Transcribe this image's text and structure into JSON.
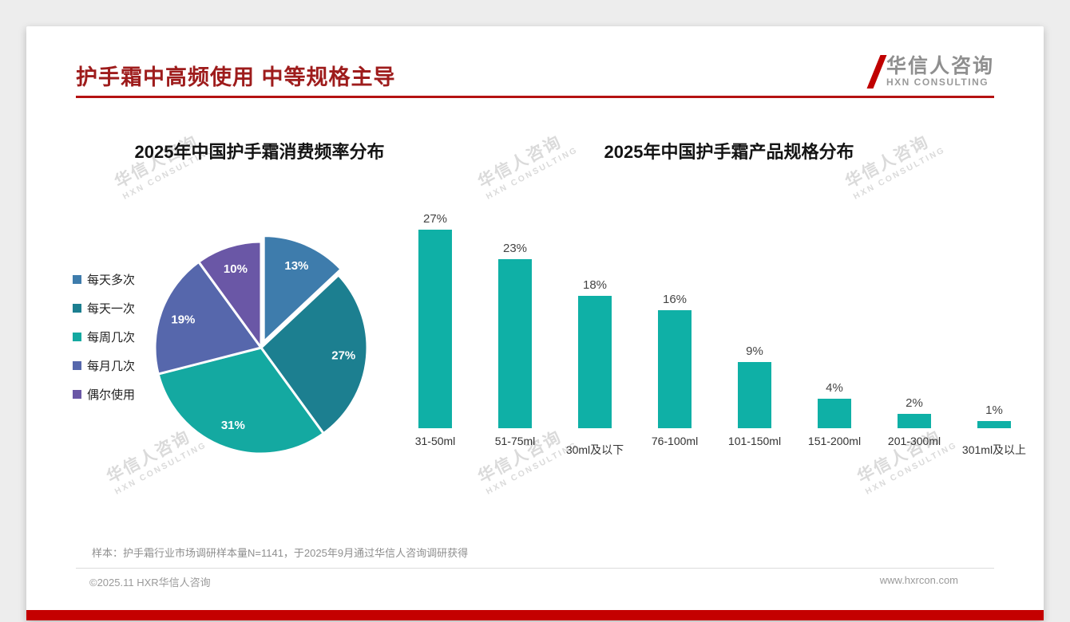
{
  "slide": {
    "title": "护手霜中高频使用 中等规格主导",
    "logo": {
      "name": "华信人咨询",
      "tagline": "HXN CONSULTING"
    },
    "watermark": {
      "line1": "华信人咨询",
      "line2": "HXN CONSULTING"
    },
    "footnote": "样本：护手霜行业市场调研样本量N=1141，于2025年9月通过华信人咨询调研获得",
    "footer": {
      "left": "©2025.11 HXR华信人咨询",
      "right": "www.hxrcon.com"
    },
    "accent_color": "#c40000",
    "title_color": "#9e1c1c"
  },
  "chart_data": [
    {
      "type": "pie",
      "title": "2025年中国护手霜消费频率分布",
      "labels": [
        "每天多次",
        "每天一次",
        "每周几次",
        "每月几次",
        "偶尔使用"
      ],
      "values": [
        13,
        27,
        31,
        19,
        10
      ],
      "value_suffix": "%",
      "colors": [
        "#3e7cac",
        "#1c7f90",
        "#14a9a1",
        "#5667ac",
        "#6a57a6"
      ],
      "legend_position": "left",
      "start_angle": -90,
      "direction": "clockwise",
      "exploded_slice_index": 0
    },
    {
      "type": "bar",
      "title": "2025年中国护手霜产品规格分布",
      "categories": [
        "31-50ml",
        "51-75ml",
        "30ml及以下",
        "76-100ml",
        "101-150ml",
        "151-200ml",
        "201-300ml",
        "301ml及以上"
      ],
      "values": [
        27,
        23,
        18,
        16,
        9,
        4,
        2,
        1
      ],
      "value_suffix": "%",
      "bar_color": "#0fb0a6",
      "ylim": [
        0,
        30
      ],
      "grid": false,
      "value_labels": true
    }
  ]
}
